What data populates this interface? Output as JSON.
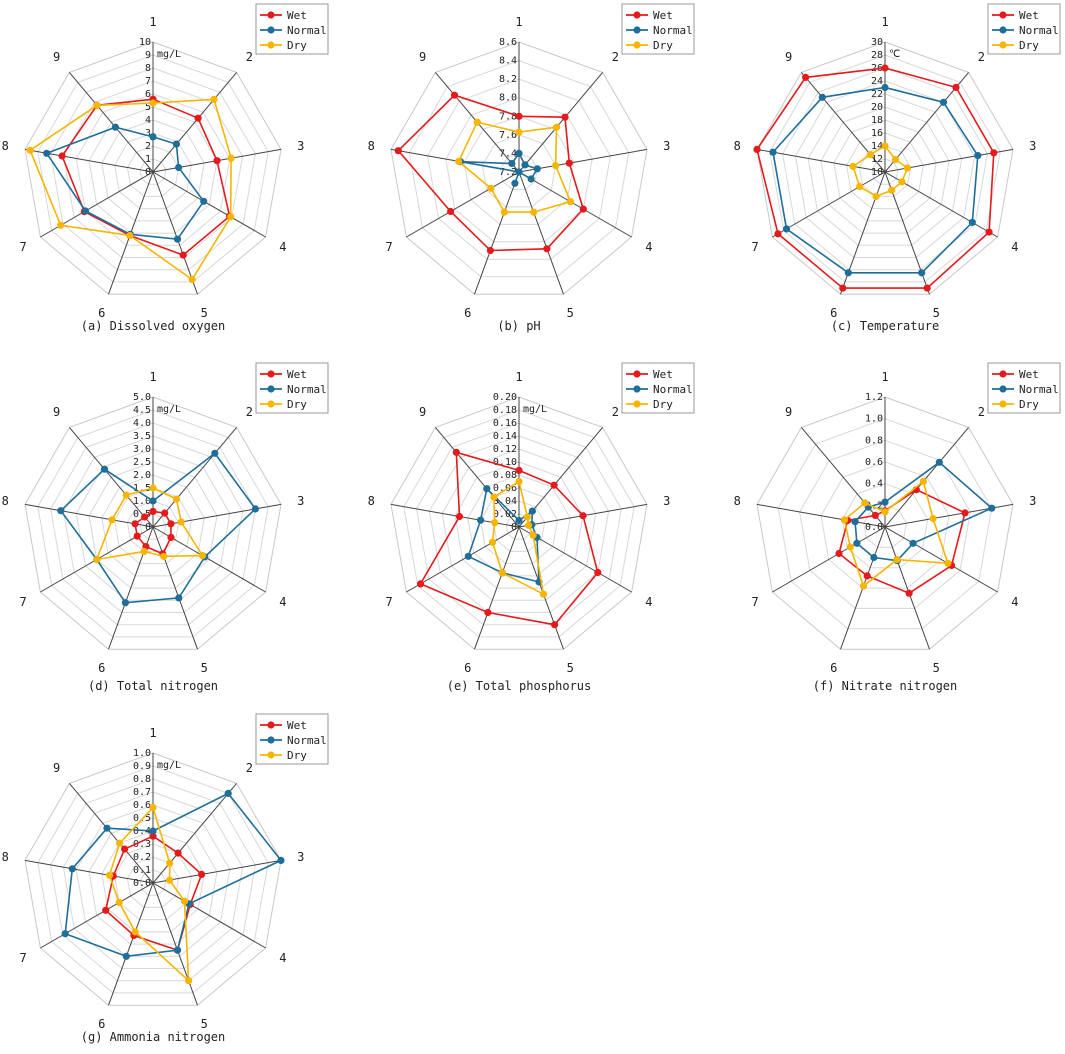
{
  "colors": {
    "wet": "#e41a1c",
    "normal": "#1f6e99",
    "dry": "#f7b500"
  },
  "legend": [
    "Wet",
    "Normal",
    "Dry"
  ],
  "spoke_labels": [
    "1",
    "2",
    "3",
    "4",
    "5",
    "6",
    "7",
    "8",
    "9"
  ],
  "chart_data": [
    {
      "type": "radar",
      "caption": "(a) Dissolved oxygen",
      "unit": "mg/L",
      "ticks": [
        "0",
        "1",
        "2",
        "3",
        "4",
        "5",
        "6",
        "7",
        "8",
        "9",
        "10"
      ],
      "rmin": 0,
      "rmax": 10,
      "series": [
        {
          "name": "Wet",
          "values": [
            5.6,
            5.4,
            5.0,
            6.8,
            6.8,
            5.2,
            6.1,
            7.1,
            6.7
          ]
        },
        {
          "name": "Normal",
          "values": [
            2.7,
            2.8,
            2.0,
            4.5,
            5.5,
            5.1,
            6.0,
            8.3,
            4.5
          ]
        },
        {
          "name": "Dry",
          "values": [
            5.3,
            7.3,
            6.1,
            6.9,
            8.8,
            5.2,
            8.2,
            9.6,
            6.7
          ]
        }
      ]
    },
    {
      "type": "radar",
      "caption": "(b) pH",
      "unit": "",
      "ticks": [
        "7.2",
        "7.4",
        "7.6",
        "7.8",
        "8.0",
        "8.2",
        "8.4",
        "8.6"
      ],
      "rmin": 7.2,
      "rmax": 8.6,
      "series": [
        {
          "name": "Wet",
          "values": [
            7.8,
            7.97,
            7.75,
            8.0,
            8.08,
            8.1,
            8.05,
            8.52,
            8.28
          ]
        },
        {
          "name": "Normal",
          "values": [
            7.4,
            7.3,
            7.4,
            7.35,
            7.2,
            7.33,
            7.2,
            7.84,
            7.32
          ]
        },
        {
          "name": "Dry",
          "values": [
            7.63,
            7.83,
            7.6,
            7.84,
            7.66,
            7.66,
            7.55,
            7.86,
            7.9
          ]
        }
      ]
    },
    {
      "type": "radar",
      "caption": "(c) Temperature",
      "unit": "℃",
      "ticks": [
        "10",
        "12",
        "14",
        "16",
        "18",
        "20",
        "22",
        "24",
        "26",
        "28",
        "30"
      ],
      "rmin": 10,
      "rmax": 30,
      "series": [
        {
          "name": "Wet",
          "values": [
            26,
            27,
            27,
            28.5,
            29,
            29,
            29,
            30,
            29
          ]
        },
        {
          "name": "Normal",
          "values": [
            23,
            24,
            24.5,
            25.5,
            26.5,
            26.5,
            27.5,
            27.5,
            25
          ]
        },
        {
          "name": "Dry",
          "values": [
            14,
            12.5,
            13.5,
            13,
            13,
            14,
            14.5,
            15,
            13.5
          ]
        }
      ]
    },
    {
      "type": "radar",
      "caption": "(d) Total nitrogen",
      "unit": "mg/L",
      "ticks": [
        "0",
        "0.5",
        "1.0",
        "1.5",
        "2.0",
        "2.5",
        "3.0",
        "3.5",
        "4.0",
        "4.5",
        "5.0"
      ],
      "rmin": 0,
      "rmax": 5,
      "series": [
        {
          "name": "Wet",
          "values": [
            0.6,
            0.7,
            0.7,
            0.8,
            1.1,
            0.8,
            0.7,
            0.7,
            0.5
          ]
        },
        {
          "name": "Normal",
          "values": [
            1.0,
            3.7,
            4.0,
            2.3,
            2.9,
            3.1,
            2.5,
            3.6,
            2.9
          ]
        },
        {
          "name": "Dry",
          "values": [
            1.5,
            1.4,
            1.1,
            2.2,
            1.2,
            1.0,
            2.5,
            1.6,
            1.6
          ]
        }
      ]
    },
    {
      "type": "radar",
      "caption": "(e) Total phosphorus",
      "unit": "mg/L",
      "ticks": [
        "0",
        "0.02",
        "0.04",
        "0.06",
        "0.08",
        "0.10",
        "0.12",
        "0.14",
        "0.16",
        "0.18",
        "0.20"
      ],
      "rmin": 0,
      "rmax": 0.2,
      "series": [
        {
          "name": "Wet",
          "values": [
            0.087,
            0.084,
            0.1,
            0.14,
            0.16,
            0.14,
            0.175,
            0.093,
            0.15
          ]
        },
        {
          "name": "Normal",
          "values": [
            0.01,
            0.032,
            0.02,
            0.032,
            0.09,
            0.075,
            0.09,
            0.06,
            0.077
          ]
        },
        {
          "name": "Dry",
          "values": [
            0.07,
            0.02,
            0.015,
            0.025,
            0.11,
            0.075,
            0.047,
            0.038,
            0.06
          ]
        }
      ]
    },
    {
      "type": "radar",
      "caption": "(f) Nitrate nitrogen",
      "unit": "",
      "ticks": [
        "0.0",
        "0.2",
        "0.4",
        "0.6",
        "0.8",
        "1.0",
        "1.2"
      ],
      "rmin": 0,
      "rmax": 1.2,
      "series": [
        {
          "name": "Wet",
          "values": [
            0.15,
            0.45,
            0.75,
            0.71,
            0.65,
            0.48,
            0.49,
            0.35,
            0.14
          ]
        },
        {
          "name": "Normal",
          "values": [
            0.23,
            0.78,
            1.0,
            0.3,
            0.33,
            0.3,
            0.3,
            0.28,
            0.24
          ]
        },
        {
          "name": "Dry",
          "values": [
            0.14,
            0.55,
            0.45,
            0.67,
            0.32,
            0.58,
            0.37,
            0.38,
            0.29
          ]
        }
      ]
    },
    {
      "type": "radar",
      "caption": "(g) Ammonia nitrogen",
      "unit": "mg/L",
      "ticks": [
        "0.0",
        "0.1",
        "0.2",
        "0.3",
        "0.4",
        "0.5",
        "0.6",
        "0.7",
        "0.8",
        "0.9",
        "1.0"
      ],
      "rmin": 0,
      "rmax": 1.0,
      "series": [
        {
          "name": "Wet",
          "values": [
            0.36,
            0.3,
            0.38,
            0.33,
            0.55,
            0.43,
            0.42,
            0.31,
            0.34
          ]
        },
        {
          "name": "Normal",
          "values": [
            0.4,
            0.9,
            1.0,
            0.32,
            0.55,
            0.6,
            0.78,
            0.63,
            0.55
          ]
        },
        {
          "name": "Dry",
          "values": [
            0.58,
            0.2,
            0.13,
            0.28,
            0.8,
            0.4,
            0.3,
            0.34,
            0.4
          ]
        }
      ]
    }
  ]
}
